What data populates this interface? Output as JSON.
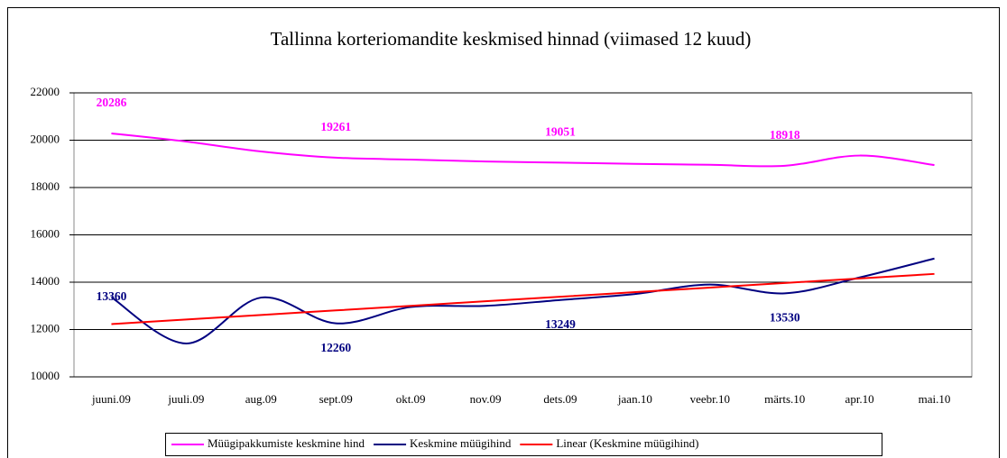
{
  "chart_data": {
    "type": "line",
    "title": "Tallinna korteriomandite keskmised hinnad (viimased 12 kuud)",
    "categories": [
      "juuni.09",
      "juuli.09",
      "aug.09",
      "sept.09",
      "okt.09",
      "nov.09",
      "dets.09",
      "jaan.10",
      "veebr.10",
      "märts.10",
      "apr.10",
      "mai.10"
    ],
    "series": [
      {
        "name": "Müügipakkumiste keskmine hind",
        "color": "#ff00ff",
        "values": [
          20286,
          19943,
          19524,
          19261,
          19181,
          19100,
          19051,
          19000,
          18960,
          18918,
          19350,
          18950
        ],
        "value_labels": [
          "20286",
          null,
          null,
          "19261",
          null,
          null,
          "19051",
          null,
          null,
          "18918",
          null,
          null
        ]
      },
      {
        "name": "Keskmine müügihind",
        "color": "#000080",
        "values": [
          13360,
          11410,
          13350,
          12260,
          12950,
          13000,
          13249,
          13500,
          13900,
          13530,
          14200,
          15000
        ],
        "value_labels": [
          "13360",
          null,
          null,
          "12260",
          null,
          null,
          "13249",
          null,
          null,
          "13530",
          null,
          null
        ]
      },
      {
        "name": "Linear (Keskmine müügihind)",
        "color": "#ff0000",
        "values": [
          12230,
          12423,
          12615,
          12808,
          13001,
          13194,
          13386,
          13579,
          13772,
          13965,
          14157,
          14350
        ]
      }
    ],
    "ylim": [
      10000,
      22000
    ],
    "yticks": [
      10000,
      12000,
      14000,
      16000,
      18000,
      20000,
      22000
    ],
    "grid": true
  }
}
